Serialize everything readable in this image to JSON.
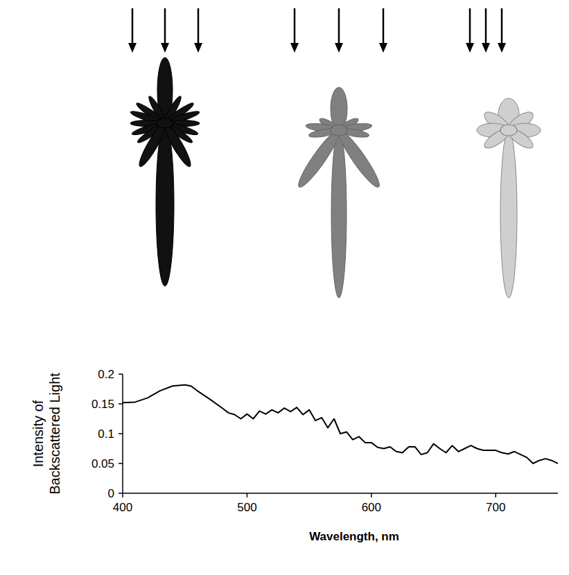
{
  "chart_data": {
    "type": "line",
    "x_label": "Wavelength, nm",
    "y_label": "Intensity of Backscattered Light",
    "x": [
      400,
      410,
      420,
      430,
      440,
      450,
      455,
      460,
      470,
      480,
      485,
      490,
      495,
      500,
      505,
      510,
      515,
      520,
      525,
      530,
      535,
      540,
      545,
      550,
      555,
      560,
      565,
      570,
      575,
      580,
      585,
      590,
      595,
      600,
      605,
      610,
      615,
      620,
      625,
      630,
      635,
      640,
      645,
      650,
      655,
      660,
      665,
      670,
      675,
      680,
      685,
      690,
      700,
      705,
      710,
      715,
      720,
      725,
      730,
      735,
      740,
      745,
      750
    ],
    "values": [
      0.152,
      0.153,
      0.16,
      0.172,
      0.18,
      0.182,
      0.18,
      0.172,
      0.158,
      0.143,
      0.135,
      0.132,
      0.125,
      0.133,
      0.125,
      0.138,
      0.133,
      0.14,
      0.135,
      0.143,
      0.137,
      0.144,
      0.132,
      0.14,
      0.122,
      0.127,
      0.11,
      0.125,
      0.1,
      0.103,
      0.09,
      0.095,
      0.085,
      0.085,
      0.077,
      0.075,
      0.078,
      0.07,
      0.068,
      0.078,
      0.078,
      0.065,
      0.068,
      0.083,
      0.075,
      0.068,
      0.08,
      0.07,
      0.075,
      0.08,
      0.075,
      0.072,
      0.072,
      0.068,
      0.066,
      0.07,
      0.065,
      0.06,
      0.05,
      0.055,
      0.058,
      0.055,
      0.05
    ],
    "color": "#000000",
    "xlim": [
      400,
      750
    ],
    "xticks": [
      400,
      500,
      600,
      700
    ],
    "ylim": [
      0,
      0.2
    ],
    "yticks": [
      0,
      0.05,
      0.1,
      0.15,
      0.2
    ],
    "grid": false
  }
}
